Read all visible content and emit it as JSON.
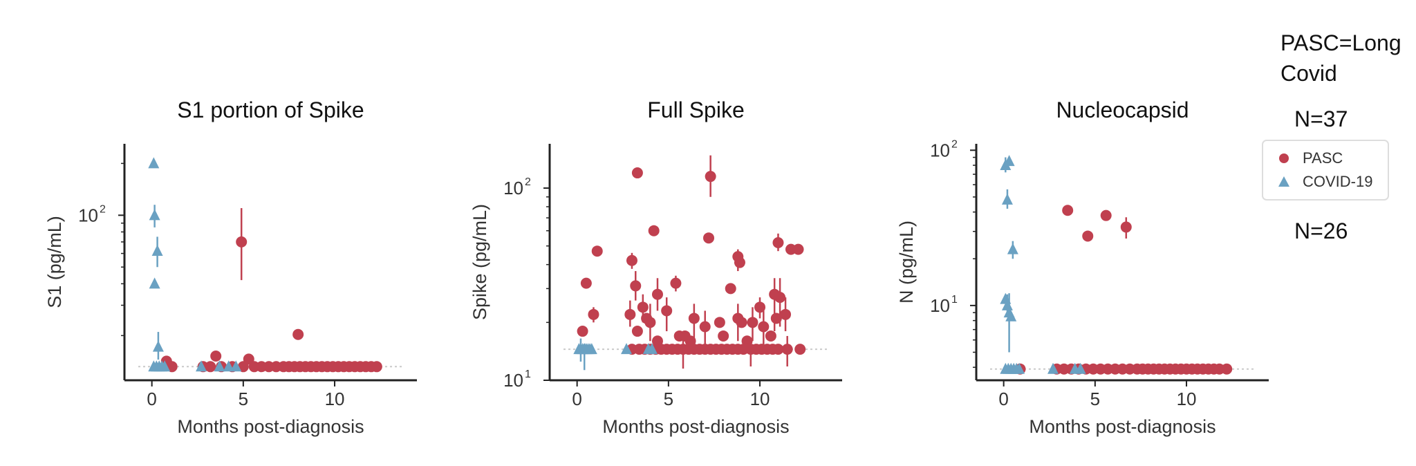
{
  "colors": {
    "pasc": "#c0404f",
    "covid": "#6aa1c2",
    "axis": "#222222",
    "baseline": "#c9c9c9"
  },
  "notes": {
    "line1": "PASC=Long",
    "line2": "Covid",
    "n_pasc": "N=37",
    "n_covid": "N=26"
  },
  "legend": {
    "placement": "right",
    "pasc": "PASC",
    "covid": "COVID-19"
  },
  "chart_data": [
    {
      "type": "scatter",
      "title": "S1 portion of Spike",
      "xlabel": "Months post-diagnosis",
      "ylabel": "S1  (pg/mL)",
      "xlim": [
        -1.5,
        14.5
      ],
      "ylim": [
        11,
        260
      ],
      "log_y": true,
      "x_ticks": [
        0,
        5,
        10
      ],
      "y_ticks": [
        {
          "value": 100,
          "base": "10",
          "exp": "2"
        }
      ],
      "baseline": 13.2,
      "grid": false,
      "series": [
        {
          "name": "PASC",
          "marker": "circle",
          "points": [
            {
              "x": 4.9,
              "y": 70,
              "lo": 42,
              "hi": 110
            },
            {
              "x": 8.0,
              "y": 20.3,
              "lo": 19.2,
              "hi": 21.6
            },
            {
              "x": 3.5,
              "y": 15.2
            },
            {
              "x": 5.3,
              "y": 14.6
            },
            {
              "x": 0.8,
              "y": 14.2,
              "lo": 13.2,
              "hi": 14.9
            },
            {
              "x": 1.1,
              "y": 13.2
            },
            {
              "x": 2.8,
              "y": 13.2
            },
            {
              "x": 3.2,
              "y": 13.2
            },
            {
              "x": 3.8,
              "y": 13.2
            },
            {
              "x": 4.4,
              "y": 13.2
            },
            {
              "x": 5.0,
              "y": 13.2
            },
            {
              "x": 5.6,
              "y": 13.2
            },
            {
              "x": 6.0,
              "y": 13.2
            },
            {
              "x": 6.4,
              "y": 13.2
            },
            {
              "x": 6.8,
              "y": 13.2
            },
            {
              "x": 7.2,
              "y": 13.2
            },
            {
              "x": 7.5,
              "y": 13.2
            },
            {
              "x": 7.8,
              "y": 13.2
            },
            {
              "x": 8.1,
              "y": 13.2
            },
            {
              "x": 8.4,
              "y": 13.2
            },
            {
              "x": 8.7,
              "y": 13.2
            },
            {
              "x": 9.0,
              "y": 13.2
            },
            {
              "x": 9.3,
              "y": 13.2
            },
            {
              "x": 9.6,
              "y": 13.2
            },
            {
              "x": 9.9,
              "y": 13.2
            },
            {
              "x": 10.2,
              "y": 13.2
            },
            {
              "x": 10.5,
              "y": 13.2
            },
            {
              "x": 10.8,
              "y": 13.2
            },
            {
              "x": 11.1,
              "y": 13.2
            },
            {
              "x": 11.4,
              "y": 13.2
            },
            {
              "x": 11.7,
              "y": 13.2
            },
            {
              "x": 12.0,
              "y": 13.2
            },
            {
              "x": 12.3,
              "y": 13.2
            }
          ]
        },
        {
          "name": "COVID-19",
          "marker": "triangle",
          "points": [
            {
              "x": 0.1,
              "y": 200
            },
            {
              "x": 0.15,
              "y": 100,
              "lo": 85,
              "hi": 115
            },
            {
              "x": 0.3,
              "y": 62,
              "lo": 50,
              "hi": 75
            },
            {
              "x": 0.15,
              "y": 40
            },
            {
              "x": 0.35,
              "y": 17.2,
              "lo": 14.5,
              "hi": 21
            },
            {
              "x": 0.1,
              "y": 13.2
            },
            {
              "x": 0.25,
              "y": 13.2
            },
            {
              "x": 0.4,
              "y": 13.2
            },
            {
              "x": 0.55,
              "y": 13.2
            },
            {
              "x": 0.7,
              "y": 13.2
            },
            {
              "x": 2.7,
              "y": 13.2
            },
            {
              "x": 3.7,
              "y": 13.2
            },
            {
              "x": 4.2,
              "y": 13.2
            },
            {
              "x": 4.6,
              "y": 13.2
            }
          ]
        }
      ]
    },
    {
      "type": "scatter",
      "title": "Full Spike",
      "xlabel": "Months post-diagnosis",
      "ylabel": "Spike  (pg/mL)",
      "xlim": [
        -1.5,
        14.5
      ],
      "ylim": [
        10,
        170
      ],
      "log_y": true,
      "x_ticks": [
        0,
        5,
        10
      ],
      "y_ticks": [
        {
          "value": 100,
          "base": "10",
          "exp": "2"
        },
        {
          "value": 10,
          "base": "10",
          "exp": "1"
        }
      ],
      "baseline": 14.5,
      "grid": false,
      "series": [
        {
          "name": "PASC",
          "marker": "circle",
          "points": [
            {
              "x": 3.3,
              "y": 120
            },
            {
              "x": 7.3,
              "y": 115,
              "lo": 90,
              "hi": 148
            },
            {
              "x": 4.2,
              "y": 60,
              "lo": 57,
              "hi": 64
            },
            {
              "x": 7.2,
              "y": 55
            },
            {
              "x": 1.1,
              "y": 47
            },
            {
              "x": 3.0,
              "y": 42,
              "lo": 38,
              "hi": 46
            },
            {
              "x": 8.8,
              "y": 44,
              "lo": 37,
              "hi": 48
            },
            {
              "x": 8.9,
              "y": 41
            },
            {
              "x": 11.0,
              "y": 52,
              "lo": 47,
              "hi": 58
            },
            {
              "x": 11.7,
              "y": 48
            },
            {
              "x": 12.1,
              "y": 48,
              "lo": 45,
              "hi": 51
            },
            {
              "x": 0.5,
              "y": 32
            },
            {
              "x": 3.2,
              "y": 31,
              "lo": 26,
              "hi": 37
            },
            {
              "x": 5.4,
              "y": 32,
              "lo": 29,
              "hi": 35
            },
            {
              "x": 8.4,
              "y": 30
            },
            {
              "x": 4.4,
              "y": 28,
              "lo": 23,
              "hi": 34
            },
            {
              "x": 10.8,
              "y": 28,
              "lo": 18,
              "hi": 34
            },
            {
              "x": 11.1,
              "y": 27,
              "lo": 19,
              "hi": 34
            },
            {
              "x": 0.9,
              "y": 22,
              "lo": 20,
              "hi": 24
            },
            {
              "x": 4.9,
              "y": 23,
              "lo": 18,
              "hi": 27
            },
            {
              "x": 3.6,
              "y": 24,
              "lo": 20,
              "hi": 28
            },
            {
              "x": 2.9,
              "y": 22,
              "lo": 19,
              "hi": 26
            },
            {
              "x": 3.8,
              "y": 21
            },
            {
              "x": 4.0,
              "y": 20,
              "lo": 16,
              "hi": 25
            },
            {
              "x": 6.4,
              "y": 21,
              "lo": 16,
              "hi": 25
            },
            {
              "x": 7.0,
              "y": 19,
              "lo": 15,
              "hi": 23
            },
            {
              "x": 7.8,
              "y": 20
            },
            {
              "x": 9.6,
              "y": 20,
              "lo": 16,
              "hi": 24
            },
            {
              "x": 10.0,
              "y": 24,
              "lo": 21,
              "hi": 27
            },
            {
              "x": 10.2,
              "y": 19,
              "lo": 15,
              "hi": 23
            },
            {
              "x": 11.4,
              "y": 22,
              "lo": 18,
              "hi": 27
            },
            {
              "x": 8.8,
              "y": 21,
              "lo": 16,
              "hi": 25
            },
            {
              "x": 10.9,
              "y": 21
            },
            {
              "x": 9.0,
              "y": 20
            },
            {
              "x": 0.3,
              "y": 18
            },
            {
              "x": 3.3,
              "y": 18
            },
            {
              "x": 4.4,
              "y": 16
            },
            {
              "x": 5.6,
              "y": 17
            },
            {
              "x": 5.9,
              "y": 17
            },
            {
              "x": 6.2,
              "y": 16
            },
            {
              "x": 8.0,
              "y": 17
            },
            {
              "x": 9.3,
              "y": 16
            },
            {
              "x": 10.6,
              "y": 17
            },
            {
              "x": 5.8,
              "y": 14.5,
              "lo": 11.5,
              "hi": 17.5
            },
            {
              "x": 9.5,
              "y": 14.5,
              "lo": 11.8,
              "hi": 16.5
            },
            {
              "x": 11.5,
              "y": 14.5,
              "lo": 11.8,
              "hi": 17
            },
            {
              "x": 3.0,
              "y": 14.5
            },
            {
              "x": 3.4,
              "y": 14.5
            },
            {
              "x": 3.7,
              "y": 14.5
            },
            {
              "x": 4.0,
              "y": 14.5
            },
            {
              "x": 4.3,
              "y": 14.5
            },
            {
              "x": 4.6,
              "y": 14.5
            },
            {
              "x": 4.9,
              "y": 14.5
            },
            {
              "x": 5.2,
              "y": 14.5
            },
            {
              "x": 5.5,
              "y": 14.5
            },
            {
              "x": 6.1,
              "y": 14.5
            },
            {
              "x": 6.4,
              "y": 14.5
            },
            {
              "x": 6.7,
              "y": 14.5
            },
            {
              "x": 7.0,
              "y": 14.5
            },
            {
              "x": 7.3,
              "y": 14.5
            },
            {
              "x": 7.6,
              "y": 14.5
            },
            {
              "x": 7.9,
              "y": 14.5
            },
            {
              "x": 8.2,
              "y": 14.5
            },
            {
              "x": 8.5,
              "y": 14.5
            },
            {
              "x": 8.8,
              "y": 14.5
            },
            {
              "x": 9.1,
              "y": 14.5
            },
            {
              "x": 9.8,
              "y": 14.5
            },
            {
              "x": 10.1,
              "y": 14.5
            },
            {
              "x": 10.4,
              "y": 14.5
            },
            {
              "x": 10.7,
              "y": 14.5
            },
            {
              "x": 11.0,
              "y": 14.5
            },
            {
              "x": 12.2,
              "y": 14.5
            }
          ]
        },
        {
          "name": "COVID-19",
          "marker": "triangle",
          "points": [
            {
              "x": 0.1,
              "y": 14.5
            },
            {
              "x": 0.2,
              "y": 14.5,
              "lo": 12.5,
              "hi": 16.5
            },
            {
              "x": 0.3,
              "y": 14.5
            },
            {
              "x": 0.4,
              "y": 14.5,
              "lo": 11.3,
              "hi": 15.5
            },
            {
              "x": 0.5,
              "y": 14.5
            },
            {
              "x": 0.6,
              "y": 14.5
            },
            {
              "x": 0.7,
              "y": 14.5
            },
            {
              "x": 0.8,
              "y": 14.5
            },
            {
              "x": 2.7,
              "y": 14.5
            },
            {
              "x": 3.9,
              "y": 14.5
            },
            {
              "x": 4.1,
              "y": 14.5
            }
          ]
        }
      ]
    },
    {
      "type": "scatter",
      "title": "Nucleocapsid",
      "xlabel": "Months post-diagnosis",
      "ylabel": "N  (pg/mL)",
      "xlim": [
        -1.5,
        14.5
      ],
      "ylim": [
        3.3,
        110
      ],
      "log_y": true,
      "x_ticks": [
        0,
        5,
        10
      ],
      "y_ticks": [
        {
          "value": 100,
          "base": "10",
          "exp": "2"
        },
        {
          "value": 10,
          "base": "10",
          "exp": "1"
        }
      ],
      "baseline": 3.9,
      "grid": false,
      "series": [
        {
          "name": "PASC",
          "marker": "circle",
          "points": [
            {
              "x": 3.5,
              "y": 41
            },
            {
              "x": 5.6,
              "y": 38
            },
            {
              "x": 4.6,
              "y": 28
            },
            {
              "x": 6.7,
              "y": 32,
              "lo": 27,
              "hi": 37
            },
            {
              "x": 0.9,
              "y": 3.9
            },
            {
              "x": 2.9,
              "y": 3.9
            },
            {
              "x": 3.3,
              "y": 3.9
            },
            {
              "x": 3.7,
              "y": 3.9
            },
            {
              "x": 4.1,
              "y": 3.9
            },
            {
              "x": 4.5,
              "y": 3.9
            },
            {
              "x": 4.9,
              "y": 3.9
            },
            {
              "x": 5.3,
              "y": 3.9
            },
            {
              "x": 5.7,
              "y": 3.9
            },
            {
              "x": 6.1,
              "y": 3.9
            },
            {
              "x": 6.5,
              "y": 3.9
            },
            {
              "x": 6.9,
              "y": 3.9
            },
            {
              "x": 7.3,
              "y": 3.9
            },
            {
              "x": 7.6,
              "y": 3.9
            },
            {
              "x": 7.9,
              "y": 3.9
            },
            {
              "x": 8.2,
              "y": 3.9
            },
            {
              "x": 8.5,
              "y": 3.9
            },
            {
              "x": 8.8,
              "y": 3.9
            },
            {
              "x": 9.1,
              "y": 3.9
            },
            {
              "x": 9.4,
              "y": 3.9
            },
            {
              "x": 9.7,
              "y": 3.9
            },
            {
              "x": 10.0,
              "y": 3.9
            },
            {
              "x": 10.3,
              "y": 3.9
            },
            {
              "x": 10.6,
              "y": 3.9
            },
            {
              "x": 10.9,
              "y": 3.9
            },
            {
              "x": 11.2,
              "y": 3.9
            },
            {
              "x": 11.5,
              "y": 3.9
            },
            {
              "x": 11.8,
              "y": 3.9
            },
            {
              "x": 12.2,
              "y": 3.9
            }
          ]
        },
        {
          "name": "COVID-19",
          "marker": "triangle",
          "points": [
            {
              "x": 0.1,
              "y": 80,
              "lo": 72,
              "hi": 90
            },
            {
              "x": 0.3,
              "y": 85
            },
            {
              "x": 0.2,
              "y": 48,
              "lo": 42,
              "hi": 56
            },
            {
              "x": 0.5,
              "y": 23,
              "lo": 20,
              "hi": 26
            },
            {
              "x": 0.1,
              "y": 11
            },
            {
              "x": 0.2,
              "y": 10,
              "lo": 8.5,
              "hi": 11.8
            },
            {
              "x": 0.3,
              "y": 9,
              "lo": 5,
              "hi": 12
            },
            {
              "x": 0.4,
              "y": 8.5
            },
            {
              "x": 0.1,
              "y": 3.9
            },
            {
              "x": 0.25,
              "y": 3.9
            },
            {
              "x": 0.4,
              "y": 3.9
            },
            {
              "x": 0.55,
              "y": 3.9
            },
            {
              "x": 0.7,
              "y": 3.9
            },
            {
              "x": 0.85,
              "y": 3.9
            },
            {
              "x": 2.7,
              "y": 3.9
            },
            {
              "x": 3.9,
              "y": 3.9
            },
            {
              "x": 4.2,
              "y": 3.9
            }
          ]
        }
      ]
    }
  ]
}
